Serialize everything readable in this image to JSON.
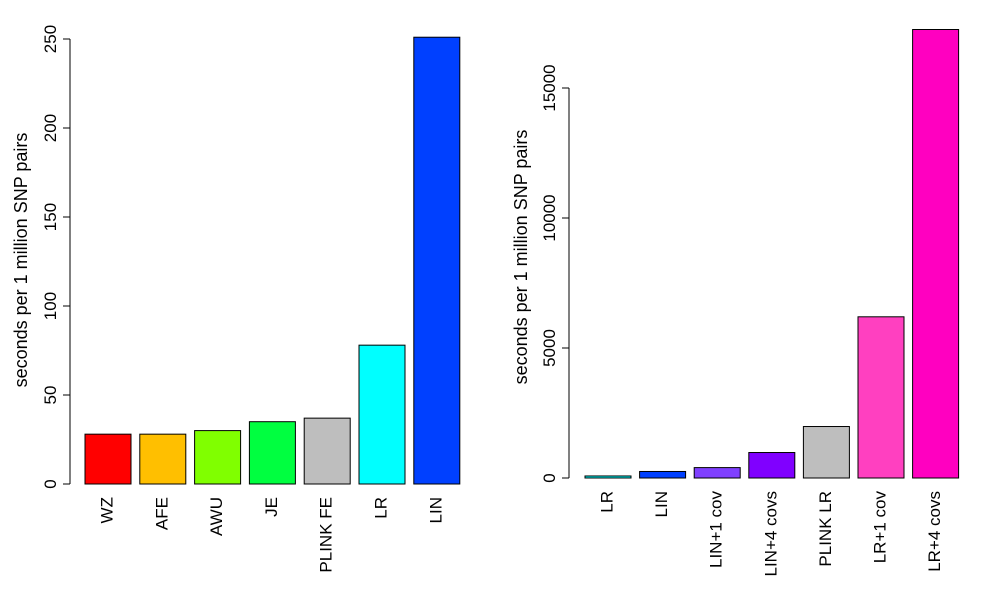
{
  "chart_data": [
    {
      "type": "bar",
      "ylabel": "seconds per 1 million SNP pairs",
      "ylim": [
        0,
        250
      ],
      "yticks": [
        0,
        50,
        100,
        150,
        200,
        250
      ],
      "categories": [
        "WZ",
        "AFE",
        "AWU",
        "JE",
        "PLINK FE",
        "LR",
        "LIN"
      ],
      "values": [
        28,
        28,
        30,
        35,
        37,
        78,
        251
      ],
      "colors": [
        "#FF0000",
        "#FFBF00",
        "#80FF00",
        "#00FF40",
        "#BEBEBE",
        "#00FFFF",
        "#0040FF"
      ],
      "grid": false,
      "legend": "none"
    },
    {
      "type": "bar",
      "ylabel": "seconds per 1 million SNP pairs",
      "ylim": [
        0,
        15000
      ],
      "yticks": [
        0,
        5000,
        10000,
        15000
      ],
      "categories": [
        "LR",
        "LIN",
        "LIN+1 cov",
        "LIN+4 covs",
        "PLINK LR",
        "LR+1 cov",
        "LR+4 covs"
      ],
      "values": [
        78,
        251,
        400,
        980,
        1980,
        6200,
        17250
      ],
      "colors": [
        "#00FFFF",
        "#0040FF",
        "#8040FF",
        "#8000FF",
        "#BEBEBE",
        "#FF40C0",
        "#FF00C0"
      ],
      "grid": false,
      "legend": "none"
    }
  ]
}
